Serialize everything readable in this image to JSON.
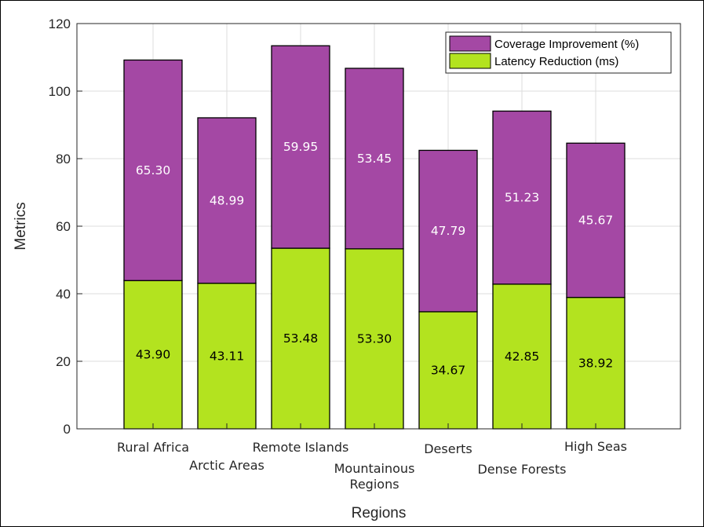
{
  "chart_data": {
    "type": "bar",
    "stacked": true,
    "categories": [
      "Rural Africa",
      "Arctic Areas",
      "Remote Islands",
      "Mountainous Regions",
      "Deserts",
      "Dense Forests",
      "High Seas"
    ],
    "series": [
      {
        "name": "Latency Reduction (ms)",
        "values": [
          43.9,
          43.11,
          53.48,
          53.3,
          34.67,
          42.85,
          38.92
        ],
        "color": "#b3e31f"
      },
      {
        "name": "Coverage Improvement (%)",
        "values": [
          65.3,
          48.99,
          59.95,
          53.45,
          47.79,
          51.23,
          45.67
        ],
        "color": "#a448a4"
      }
    ],
    "title": "",
    "xlabel": "Regions",
    "ylabel": "Metrics",
    "ylim": [
      0,
      120
    ],
    "yticks": [
      "0",
      "20",
      "40",
      "60",
      "80",
      "100",
      "120"
    ],
    "grid": true,
    "legend_position": "top-right",
    "legend_order": [
      "Coverage Improvement (%)",
      "Latency Reduction (ms)"
    ]
  }
}
